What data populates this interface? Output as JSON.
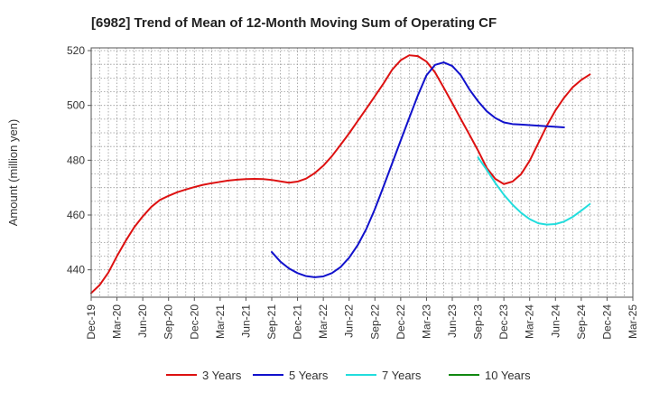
{
  "chart_data": {
    "type": "line",
    "title": "[6982]  Trend of Mean of 12-Month Moving Sum of Operating CF",
    "xlabel": "",
    "ylabel": "Amount (million yen)",
    "ylim": [
      430,
      521
    ],
    "y_ticks": [
      440,
      460,
      480,
      500,
      520
    ],
    "grid": true,
    "legend_position": "bottom",
    "x_tick_labels": [
      "Dec-19",
      "Mar-20",
      "Jun-20",
      "Sep-20",
      "Dec-20",
      "Mar-21",
      "Jun-21",
      "Sep-21",
      "Dec-21",
      "Mar-22",
      "Jun-22",
      "Sep-22",
      "Dec-22",
      "Mar-23",
      "Jun-23",
      "Sep-23",
      "Dec-23",
      "Mar-24",
      "Jun-24",
      "Sep-24",
      "Dec-24",
      "Mar-25"
    ],
    "x_month_start": "Dec-19",
    "x_month_count": 63,
    "series": [
      {
        "name": "3 Years",
        "color": "#dd1111",
        "start_index": 0,
        "values": [
          431.5,
          434.5,
          439,
          445,
          450.5,
          455.5,
          459.5,
          463,
          465.5,
          467,
          468.3,
          469.3,
          470.2,
          471,
          471.6,
          472.1,
          472.6,
          472.9,
          473.1,
          473.2,
          473.1,
          472.8,
          472.3,
          471.8,
          472.2,
          473.3,
          475.3,
          478,
          481.5,
          485.6,
          489.8,
          494.3,
          498.8,
          503.4,
          508,
          513,
          516.5,
          518.3,
          518,
          516,
          512,
          506.5,
          500.8,
          495,
          489.3,
          483.5,
          477.2,
          473.2,
          471.3,
          472.2,
          474.9,
          479.8,
          486.2,
          492.6,
          498.2,
          502.8,
          506.6,
          509.3,
          511.3
        ]
      },
      {
        "name": "5 Years",
        "color": "#1111cc",
        "start_index": 21,
        "values": [
          446.5,
          443,
          440.5,
          438.8,
          437.7,
          437.3,
          437.6,
          438.8,
          441,
          444.4,
          449,
          454.9,
          462.2,
          470.4,
          478.8,
          487.2,
          495.5,
          503.7,
          511,
          514.8,
          515.7,
          514.4,
          511,
          505.8,
          501.5,
          497.9,
          495.4,
          493.8,
          493.2,
          493,
          492.8,
          492.6,
          492.4,
          492.2,
          492
        ]
      },
      {
        "name": "7 Years",
        "color": "#22dddd",
        "start_index": 45,
        "values": [
          481,
          476.5,
          471.7,
          467.4,
          463.8,
          460.8,
          458.5,
          457,
          456.5,
          456.7,
          457.6,
          459.3,
          461.6,
          464
        ]
      },
      {
        "name": "10 Years",
        "color": "#118811",
        "start_index": 0,
        "values": []
      }
    ]
  }
}
